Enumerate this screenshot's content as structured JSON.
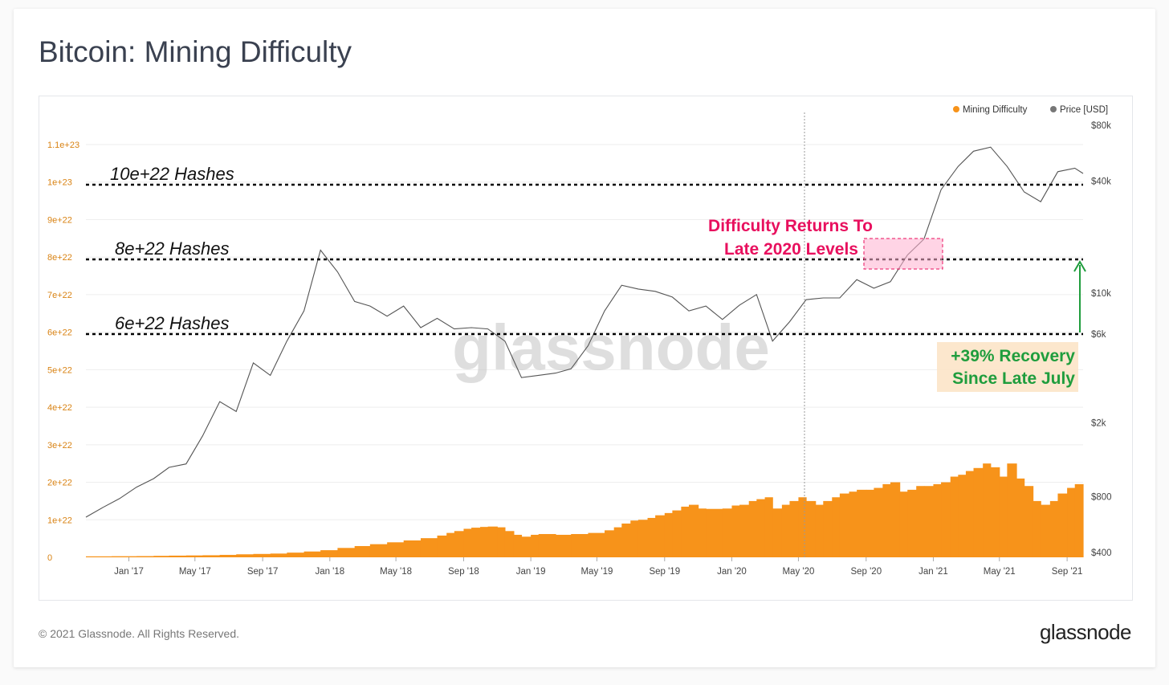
{
  "title": "Bitcoin: Mining Difficulty",
  "footer": {
    "copyright": "© 2021 Glassnode. All Rights Reserved.",
    "logo": "glassnode"
  },
  "watermark": "glassnode",
  "legend": [
    {
      "label": "Mining Difficulty",
      "color": "#f7931a"
    },
    {
      "label": "Price [USD]",
      "color": "#777777"
    }
  ],
  "annotations": {
    "h10": "10e+22 Hashes",
    "h8": "8e+22 Hashes",
    "h6": "6e+22 Hashes",
    "returns_line1": "Difficulty Returns To",
    "returns_line2": "Late 2020 Levels",
    "recovery_line1": "+39% Recovery",
    "recovery_line2": "Since Late July"
  },
  "colors": {
    "bars": "#f7931a",
    "price": "#555555",
    "returns": "#e8105e",
    "recovery": "#1f9d3d",
    "left_axis": "#d98314"
  },
  "chart_data": {
    "type": "bar",
    "title": "Bitcoin: Mining Difficulty",
    "x_ticks": [
      "Jan '17",
      "May '17",
      "Sep '17",
      "Jan '18",
      "May '18",
      "Sep '18",
      "Jan '19",
      "May '19",
      "Sep '19",
      "Jan '20",
      "May '20",
      "Sep '20",
      "Jan '21",
      "May '21",
      "Sep '21"
    ],
    "x_range": [
      "2016-10-15",
      "2021-09-30"
    ],
    "y_left": {
      "ticks": [
        "0",
        "1e+22",
        "2e+22",
        "3e+22",
        "4e+22",
        "5e+22",
        "6e+22",
        "7e+22",
        "8e+22",
        "9e+22",
        "1e+23",
        "1.1e+23"
      ],
      "range": [
        0,
        1.1e+23
      ]
    },
    "y_right": {
      "scale": "log",
      "ticks": [
        "$400",
        "$800",
        "$2k",
        "$6k",
        "$10k",
        "$40k",
        "$80k"
      ],
      "range": [
        400,
        80000
      ]
    },
    "reference_lines": [
      1e+23,
      8e+22,
      6e+22
    ],
    "series": [
      {
        "name": "Mining Difficulty",
        "kind": "bar",
        "points": [
          [
            "2016-10-15",
            2.6e+20
          ],
          [
            "2016-12-01",
            2.9e+20
          ],
          [
            "2017-01-15",
            3.2e+20
          ],
          [
            "2017-02-15",
            3.9e+20
          ],
          [
            "2017-03-15",
            4.5e+20
          ],
          [
            "2017-04-15",
            5e+20
          ],
          [
            "2017-05-15",
            5.5e+20
          ],
          [
            "2017-06-15",
            6.5e+20
          ],
          [
            "2017-07-15",
            8e+20
          ],
          [
            "2017-08-15",
            9e+20
          ],
          [
            "2017-09-15",
            1e+21
          ],
          [
            "2017-10-15",
            1.25e+21
          ],
          [
            "2017-11-15",
            1.55e+21
          ],
          [
            "2017-12-15",
            1.9e+21
          ],
          [
            "2018-01-15",
            2.5e+21
          ],
          [
            "2018-02-15",
            3e+21
          ],
          [
            "2018-03-15",
            3.5e+21
          ],
          [
            "2018-04-15",
            4e+21
          ],
          [
            "2018-05-15",
            4.5e+21
          ],
          [
            "2018-06-15",
            5.1e+21
          ],
          [
            "2018-07-15",
            5.8e+21
          ],
          [
            "2018-08-01",
            6.5e+21
          ],
          [
            "2018-08-15",
            7e+21
          ],
          [
            "2018-09-01",
            7.6e+21
          ],
          [
            "2018-09-15",
            7.9e+21
          ],
          [
            "2018-10-01",
            8.1e+21
          ],
          [
            "2018-10-15",
            8.2e+21
          ],
          [
            "2018-11-01",
            8e+21
          ],
          [
            "2018-11-15",
            7e+21
          ],
          [
            "2018-12-01",
            6e+21
          ],
          [
            "2018-12-15",
            5.5e+21
          ],
          [
            "2019-01-01",
            6e+21
          ],
          [
            "2019-01-15",
            6.2e+21
          ],
          [
            "2019-02-15",
            6e+21
          ],
          [
            "2019-03-15",
            6.2e+21
          ],
          [
            "2019-04-15",
            6.5e+21
          ],
          [
            "2019-05-15",
            7.2e+21
          ],
          [
            "2019-06-01",
            8e+21
          ],
          [
            "2019-06-15",
            9e+21
          ],
          [
            "2019-07-01",
            9.8e+21
          ],
          [
            "2019-07-15",
            1e+22
          ],
          [
            "2019-08-01",
            1.05e+22
          ],
          [
            "2019-08-15",
            1.12e+22
          ],
          [
            "2019-09-01",
            1.18e+22
          ],
          [
            "2019-09-15",
            1.25e+22
          ],
          [
            "2019-10-01",
            1.35e+22
          ],
          [
            "2019-10-15",
            1.4e+22
          ],
          [
            "2019-11-01",
            1.3e+22
          ],
          [
            "2019-11-15",
            1.29e+22
          ],
          [
            "2019-12-15",
            1.3e+22
          ],
          [
            "2020-01-01",
            1.38e+22
          ],
          [
            "2020-01-15",
            1.4e+22
          ],
          [
            "2020-02-01",
            1.5e+22
          ],
          [
            "2020-02-15",
            1.55e+22
          ],
          [
            "2020-03-01",
            1.6e+22
          ],
          [
            "2020-03-15",
            1.3e+22
          ],
          [
            "2020-04-01",
            1.4e+22
          ],
          [
            "2020-04-15",
            1.5e+22
          ],
          [
            "2020-05-01",
            1.6e+22
          ],
          [
            "2020-05-15",
            1.5e+22
          ],
          [
            "2020-06-01",
            1.4e+22
          ],
          [
            "2020-06-15",
            1.5e+22
          ],
          [
            "2020-07-01",
            1.6e+22
          ],
          [
            "2020-07-15",
            1.7e+22
          ],
          [
            "2020-08-01",
            1.75e+22
          ],
          [
            "2020-08-15",
            1.8e+22
          ],
          [
            "2020-09-01",
            1.8e+22
          ],
          [
            "2020-09-15",
            1.85e+22
          ],
          [
            "2020-10-01",
            1.95e+22
          ],
          [
            "2020-10-15",
            2e+22
          ],
          [
            "2020-11-01",
            1.75e+22
          ],
          [
            "2020-11-15",
            1.8e+22
          ],
          [
            "2020-12-01",
            1.9e+22
          ],
          [
            "2020-12-15",
            1.9e+22
          ],
          [
            "2021-01-01",
            1.95e+22
          ],
          [
            "2021-01-15",
            2e+22
          ],
          [
            "2021-02-01",
            2.15e+22
          ],
          [
            "2021-02-15",
            2.2e+22
          ],
          [
            "2021-03-01",
            2.3e+22
          ],
          [
            "2021-03-15",
            2.38e+22
          ],
          [
            "2021-04-01",
            2.5e+22
          ],
          [
            "2021-04-15",
            2.4e+22
          ],
          [
            "2021-05-01",
            2.15e+22
          ],
          [
            "2021-05-15",
            2.5e+22
          ],
          [
            "2021-06-01",
            2.1e+22
          ],
          [
            "2021-06-15",
            1.9e+22
          ],
          [
            "2021-07-01",
            1.5e+22
          ],
          [
            "2021-07-15",
            1.4e+22
          ],
          [
            "2021-08-01",
            1.5e+22
          ],
          [
            "2021-08-15",
            1.7e+22
          ],
          [
            "2021-09-01",
            1.85e+22
          ],
          [
            "2021-09-15",
            1.95e+22
          ]
        ]
      },
      {
        "name": "Price [USD]",
        "kind": "line",
        "axis": "right",
        "points": [
          [
            "2016-10-15",
            620
          ],
          [
            "2016-11-15",
            700
          ],
          [
            "2016-12-15",
            780
          ],
          [
            "2017-01-15",
            900
          ],
          [
            "2017-02-15",
            1000
          ],
          [
            "2017-03-15",
            1150
          ],
          [
            "2017-04-15",
            1200
          ],
          [
            "2017-05-15",
            1700
          ],
          [
            "2017-06-15",
            2600
          ],
          [
            "2017-07-15",
            2300
          ],
          [
            "2017-08-15",
            4200
          ],
          [
            "2017-09-15",
            3600
          ],
          [
            "2017-10-15",
            5500
          ],
          [
            "2017-11-15",
            8000
          ],
          [
            "2017-12-15",
            17000
          ],
          [
            "2018-01-15",
            13000
          ],
          [
            "2018-02-15",
            9000
          ],
          [
            "2018-03-15",
            8500
          ],
          [
            "2018-04-15",
            7500
          ],
          [
            "2018-05-15",
            8500
          ],
          [
            "2018-06-15",
            6500
          ],
          [
            "2018-07-15",
            7300
          ],
          [
            "2018-08-15",
            6400
          ],
          [
            "2018-09-15",
            6500
          ],
          [
            "2018-10-15",
            6400
          ],
          [
            "2018-11-15",
            5500
          ],
          [
            "2018-12-15",
            3500
          ],
          [
            "2019-01-15",
            3600
          ],
          [
            "2019-02-15",
            3700
          ],
          [
            "2019-03-15",
            3900
          ],
          [
            "2019-04-15",
            5200
          ],
          [
            "2019-05-15",
            8000
          ],
          [
            "2019-06-15",
            11000
          ],
          [
            "2019-07-15",
            10500
          ],
          [
            "2019-08-15",
            10200
          ],
          [
            "2019-09-15",
            9500
          ],
          [
            "2019-10-15",
            8000
          ],
          [
            "2019-11-15",
            8500
          ],
          [
            "2019-12-15",
            7200
          ],
          [
            "2020-01-15",
            8600
          ],
          [
            "2020-02-15",
            9800
          ],
          [
            "2020-03-15",
            5500
          ],
          [
            "2020-04-15",
            7000
          ],
          [
            "2020-05-15",
            9200
          ],
          [
            "2020-06-15",
            9400
          ],
          [
            "2020-07-15",
            9400
          ],
          [
            "2020-08-15",
            11800
          ],
          [
            "2020-09-15",
            10600
          ],
          [
            "2020-10-15",
            11500
          ],
          [
            "2020-11-15",
            16000
          ],
          [
            "2020-12-15",
            19500
          ],
          [
            "2021-01-15",
            36000
          ],
          [
            "2021-02-15",
            48000
          ],
          [
            "2021-03-15",
            58000
          ],
          [
            "2021-04-15",
            61000
          ],
          [
            "2021-05-15",
            48000
          ],
          [
            "2021-06-15",
            35000
          ],
          [
            "2021-07-15",
            31000
          ],
          [
            "2021-08-15",
            45000
          ],
          [
            "2021-09-15",
            47000
          ],
          [
            "2021-09-30",
            44000
          ]
        ]
      }
    ]
  }
}
